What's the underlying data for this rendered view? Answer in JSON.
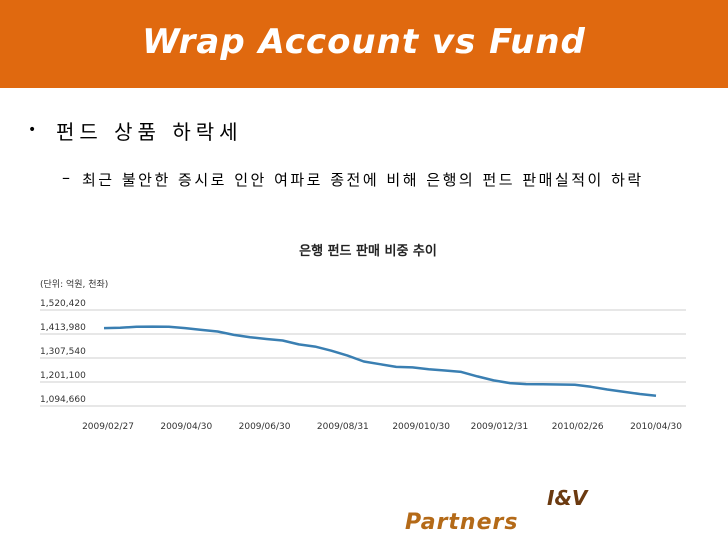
{
  "slide": {
    "title": "Wrap Account vs Fund",
    "bullet_marker": "•",
    "heading": "펀드 상품 하락세",
    "dash": "–",
    "body": "최근 불안한 증시로 인안 여파로 종전에 비해 은행의 펀드 판매실적이 하락",
    "brand_line1": "I&V",
    "brand_line2": "Partners"
  },
  "colors": {
    "title_bar": "#e0690f",
    "line": "#3a7fb2",
    "grid": "#cfcfcf"
  },
  "chart_data": {
    "type": "line",
    "title": "은행 펀드 판매 비중 추이",
    "unit_note": "(단위: 억원, 천좌)",
    "yticks": [
      1094660,
      1201100,
      1307540,
      1413980,
      1520420
    ],
    "ytick_labels": [
      "1,094,660",
      "1,201,100",
      "1,307,540",
      "1,413,980",
      "1,520,420"
    ],
    "ylim": [
      1094660,
      1520420
    ],
    "xtick_labels": [
      "2009/02/27",
      "2009/04/30",
      "2009/06/30",
      "2009/08/31",
      "2009/010/30",
      "2009/012/31",
      "2010/02/26",
      "2010/04/30"
    ],
    "grid": true,
    "values": [
      1440000,
      1442000,
      1446000,
      1447000,
      1446000,
      1440000,
      1432000,
      1425000,
      1410000,
      1400000,
      1392000,
      1385000,
      1368000,
      1358000,
      1340000,
      1318000,
      1292000,
      1280000,
      1268000,
      1266000,
      1258000,
      1252000,
      1246000,
      1226000,
      1208000,
      1196000,
      1192000,
      1191000,
      1190000,
      1189000,
      1180000,
      1168000,
      1158000,
      1148000,
      1140000
    ]
  }
}
